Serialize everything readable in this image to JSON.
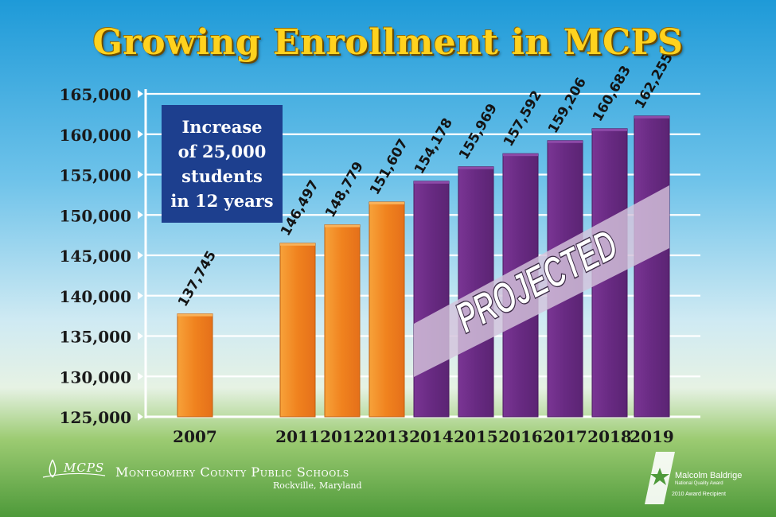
{
  "chart_data": {
    "type": "bar",
    "title": "Growing Enrollment in MCPS",
    "categories": [
      "2007",
      "2011",
      "2012",
      "2013",
      "2014",
      "2015",
      "2016",
      "2017",
      "2018",
      "2019"
    ],
    "values": [
      137745,
      146497,
      148779,
      151607,
      154178,
      155969,
      157592,
      159206,
      160683,
      162255
    ],
    "value_labels": [
      "137,745",
      "146,497",
      "148,779",
      "151,607",
      "154,178",
      "155,969",
      "157,592",
      "159,206",
      "160,683",
      "162,255"
    ],
    "projected": [
      false,
      false,
      false,
      false,
      true,
      true,
      true,
      true,
      true,
      true
    ],
    "ylim": [
      125000,
      165000
    ],
    "yticks": [
      125000,
      130000,
      135000,
      140000,
      145000,
      150000,
      155000,
      160000,
      165000
    ],
    "ytick_labels": [
      "125,000",
      "130,000",
      "135,000",
      "140,000",
      "145,000",
      "150,000",
      "155,000",
      "160,000",
      "165,000"
    ],
    "grid": true,
    "annotation": "Increase of 25,000 students in 12 years",
    "projected_label": "PROJECTED",
    "colors": {
      "actual": "#F0821E",
      "projected": "#682A82",
      "band": "#D4C3DC",
      "note_bg": "#1D3F8E",
      "title": "#FFD21E"
    }
  },
  "note": {
    "lines": [
      "Increase",
      "of 25,000",
      "students",
      "in 12 years"
    ]
  },
  "footer": {
    "logo_text": "MCPS",
    "school_name": "Montgomery County Public Schools",
    "school_location": "Rockville, Maryland",
    "award_name": "Malcolm Baldrige",
    "award_subtitle": "National Quality Award",
    "award_year": "2010 Award Recipient"
  }
}
